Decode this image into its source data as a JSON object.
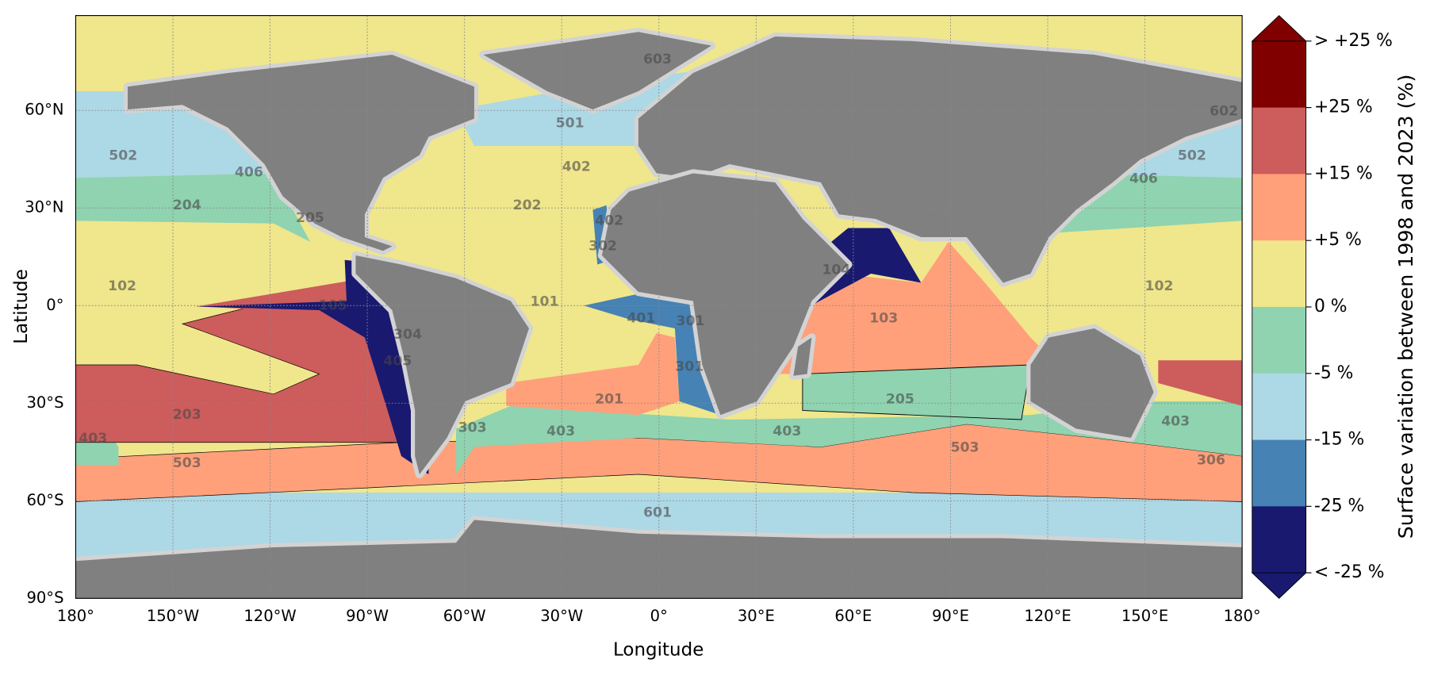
{
  "map": {
    "xlabel": "Longitude",
    "ylabel": "Latitude",
    "xticks": [
      {
        "value": -180,
        "label": "180°"
      },
      {
        "value": -150,
        "label": "150°W"
      },
      {
        "value": -120,
        "label": "120°W"
      },
      {
        "value": -90,
        "label": "90°W"
      },
      {
        "value": -60,
        "label": "60°W"
      },
      {
        "value": -30,
        "label": "30°W"
      },
      {
        "value": 0,
        "label": "0°"
      },
      {
        "value": 30,
        "label": "30°E"
      },
      {
        "value": 60,
        "label": "60°E"
      },
      {
        "value": 90,
        "label": "90°E"
      },
      {
        "value": 120,
        "label": "120°E"
      },
      {
        "value": 150,
        "label": "150°E"
      },
      {
        "value": 180,
        "label": "180°"
      }
    ],
    "yticks": [
      {
        "value": 60,
        "label": "60°N"
      },
      {
        "value": 30,
        "label": "30°N"
      },
      {
        "value": 0,
        "label": "0°"
      },
      {
        "value": -30,
        "label": "30°S"
      },
      {
        "value": -60,
        "label": "60°S"
      },
      {
        "value": -90,
        "label": "90°S"
      }
    ],
    "regions": [
      "603",
      "501",
      "502",
      "502",
      "602",
      "406",
      "406",
      "204",
      "205",
      "202",
      "402",
      "402",
      "302",
      "102",
      "102",
      "101",
      "105",
      "401",
      "301",
      "301",
      "304",
      "405",
      "104",
      "103",
      "201",
      "205",
      "203",
      "403",
      "403",
      "403",
      "403",
      "303",
      "503",
      "503",
      "306",
      "601"
    ],
    "colorbar": {
      "label": "Surface variation between 1998 and 2023 (%)",
      "ticks": [
        "> +25 %",
        "+25 %",
        "+15 %",
        "+5 %",
        "0 %",
        "-5 %",
        "-15 %",
        "-25 %",
        "< -25 %"
      ],
      "colors": [
        "#800000",
        "#cd5c5c",
        "#ffa07a",
        "#f0e68c",
        "#8fd3b0",
        "#add8e6",
        "#4682b4",
        "#191970"
      ]
    }
  }
}
